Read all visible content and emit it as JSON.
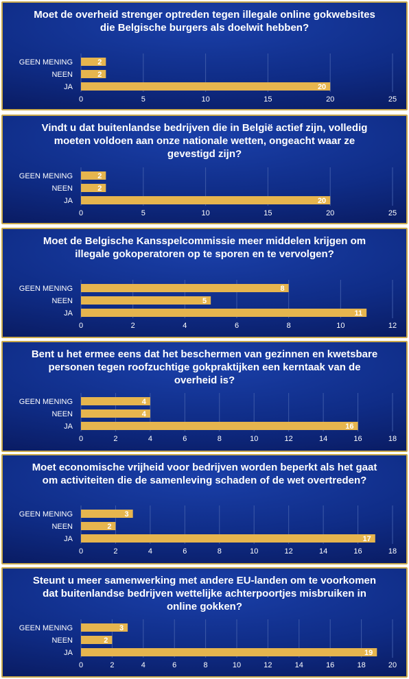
{
  "colors": {
    "bar": "#e6b54e",
    "grid": "#3e5aa8",
    "text": "#ffffff",
    "border": "#c9a94c"
  },
  "chart_data": [
    {
      "type": "bar",
      "title": "Moet de overheid strenger optreden tegen illegale online gokwebsites die Belgische burgers als doelwit hebben?",
      "categories": [
        "GEEN MENING",
        "NEEN",
        "JA"
      ],
      "values": [
        2,
        2,
        20
      ],
      "xlim": [
        0,
        25
      ],
      "ticks": [
        0,
        5,
        10,
        15,
        20,
        25
      ]
    },
    {
      "type": "bar",
      "title": "Vindt u dat buitenlandse bedrijven die in België actief zijn, volledig moeten voldoen aan onze nationale wetten, ongeacht waar ze gevestigd zijn?",
      "categories": [
        "GEEN MENING",
        "NEEN",
        "JA"
      ],
      "values": [
        2,
        2,
        20
      ],
      "xlim": [
        0,
        25
      ],
      "ticks": [
        0,
        5,
        10,
        15,
        20,
        25
      ]
    },
    {
      "type": "bar",
      "title": "Moet de Belgische Kansspelcommissie meer middelen krijgen om illegale gokoperatoren op te sporen en te vervolgen?",
      "categories": [
        "GEEN MENING",
        "NEEN",
        "JA"
      ],
      "values": [
        8,
        5,
        11
      ],
      "xlim": [
        0,
        12
      ],
      "ticks": [
        0,
        2,
        4,
        6,
        8,
        10,
        12
      ]
    },
    {
      "type": "bar",
      "title": "Bent u het ermee eens dat het beschermen van gezinnen en kwetsbare personen tegen roofzuchtige gokpraktijken een kerntaak van de overheid is?",
      "categories": [
        "GEEN MENING",
        "NEEN",
        "JA"
      ],
      "values": [
        4,
        4,
        16
      ],
      "xlim": [
        0,
        18
      ],
      "ticks": [
        0,
        2,
        4,
        6,
        8,
        10,
        12,
        14,
        16,
        18
      ]
    },
    {
      "type": "bar",
      "title": "Moet economische vrijheid voor bedrijven worden beperkt als het gaat om activiteiten die de samenleving schaden of de wet overtreden?",
      "categories": [
        "GEEN MENING",
        "NEEN",
        "JA"
      ],
      "values": [
        3,
        2,
        17
      ],
      "xlim": [
        0,
        18
      ],
      "ticks": [
        0,
        2,
        4,
        6,
        8,
        10,
        12,
        14,
        16,
        18
      ]
    },
    {
      "type": "bar",
      "title": "Steunt u meer samenwerking met andere EU-landen om te voorkomen dat buitenlandse bedrijven wettelijke achterpoortjes misbruiken in online gokken?",
      "categories": [
        "GEEN MENING",
        "NEEN",
        "JA"
      ],
      "values": [
        3,
        2,
        19
      ],
      "xlim": [
        0,
        20
      ],
      "ticks": [
        0,
        2,
        4,
        6,
        8,
        10,
        12,
        14,
        16,
        18,
        20
      ]
    }
  ]
}
